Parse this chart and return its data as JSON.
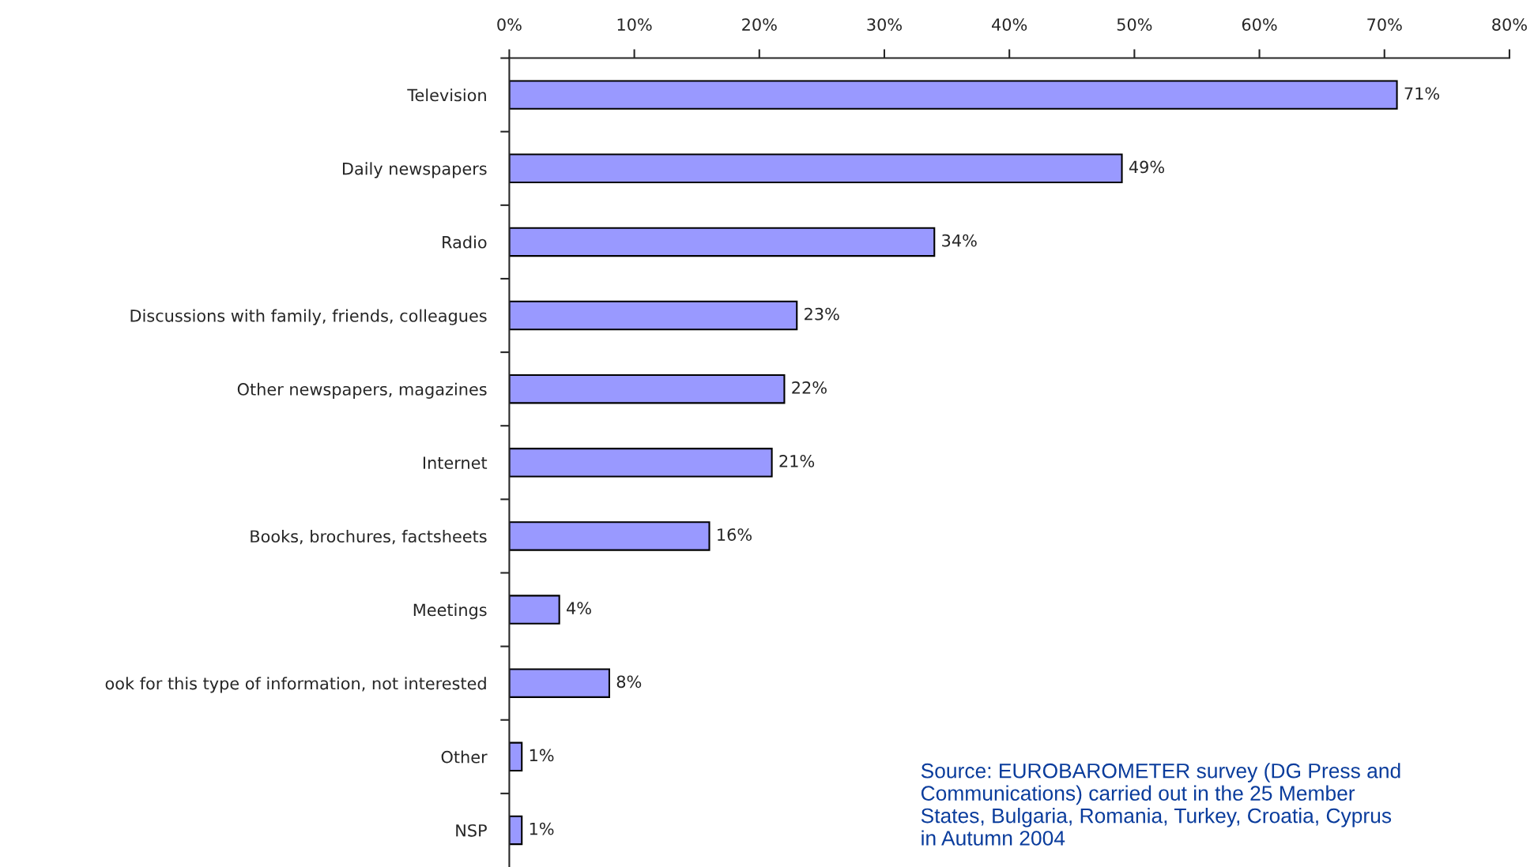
{
  "chart_data": {
    "type": "bar",
    "orientation": "horizontal",
    "categories": [
      "Television",
      "Daily newspapers",
      "Radio",
      "Discussions with family, friends, colleagues",
      "Other newspapers, magazines",
      "Internet",
      "Books, brochures, factsheets",
      "Meetings",
      "ook for this type of information, not interested",
      "Other",
      "NSP"
    ],
    "values": [
      71,
      49,
      34,
      23,
      22,
      21,
      16,
      4,
      8,
      1,
      1
    ],
    "color": "#9999ff",
    "value_labels": [
      "71%",
      "49%",
      "34%",
      "23%",
      "22%",
      "21%",
      "16%",
      "4%",
      "8%",
      "1%",
      "1%"
    ],
    "xlim": [
      0,
      80
    ],
    "xticks": [
      {
        "value": 0,
        "label": "0%"
      },
      {
        "value": 10,
        "label": "10%"
      },
      {
        "value": 20,
        "label": "20%"
      },
      {
        "value": 30,
        "label": "30%"
      },
      {
        "value": 40,
        "label": "40%"
      },
      {
        "value": 50,
        "label": "50%"
      },
      {
        "value": 60,
        "label": "60%"
      },
      {
        "value": 70,
        "label": "70%"
      },
      {
        "value": 80,
        "label": "80%"
      }
    ],
    "grid": false,
    "legend": false,
    "annotations": [
      "Source: EUROBAROMETER survey (DG Press and\nCommunications) carried out in the 25 Member\nStates, Bulgaria, Romania, Turkey, Croatia, Cyprus\nin Autumn 2004"
    ]
  }
}
